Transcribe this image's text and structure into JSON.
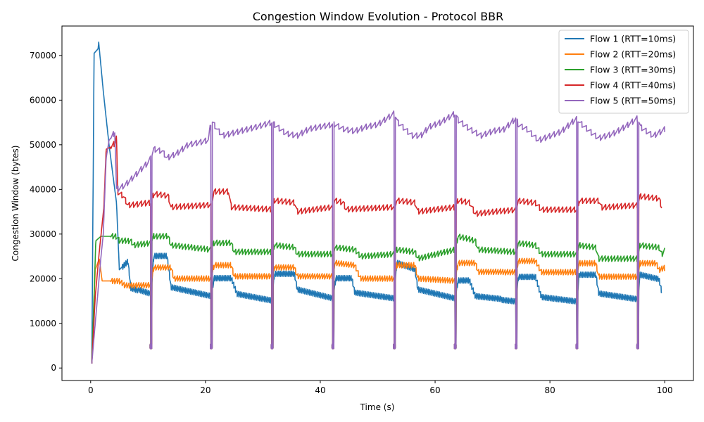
{
  "chart_data": {
    "type": "line",
    "title": "Congestion Window Evolution - Protocol BBR",
    "xlabel": "Time (s)",
    "ylabel": "Congestion Window (bytes)",
    "xlim": [
      -5,
      105
    ],
    "ylim": [
      -2800,
      76600
    ],
    "x_ticks": [
      0,
      20,
      40,
      60,
      80,
      100
    ],
    "y_ticks": [
      0,
      10000,
      20000,
      30000,
      40000,
      50000,
      60000,
      70000
    ],
    "grid": false,
    "legend_position": "top-right",
    "reset_times": [
      10.5,
      21.0,
      31.6,
      42.2,
      52.9,
      63.5,
      74.1,
      84.7,
      95.3
    ],
    "series": [
      {
        "name": "Flow 1 (RTT=10ms)",
        "color": "#1f77b4",
        "values": [
          [
            0.2,
            1000
          ],
          [
            0.6,
            70500
          ],
          [
            1.3,
            71500
          ],
          [
            1.4,
            73000
          ],
          [
            2.2,
            62000
          ],
          [
            3.2,
            50000
          ],
          [
            4.5,
            37000
          ],
          [
            5.0,
            22000
          ],
          [
            6.5,
            24000
          ],
          [
            7.0,
            18000
          ],
          [
            10.5,
            16500
          ],
          [
            11.0,
            25000
          ],
          [
            13.3,
            25000
          ],
          [
            14.0,
            18000
          ],
          [
            21.0,
            16000
          ],
          [
            21.5,
            20000
          ],
          [
            24.5,
            20000
          ],
          [
            25.5,
            16500
          ],
          [
            31.6,
            15000
          ],
          [
            32.0,
            21000
          ],
          [
            35.5,
            21000
          ],
          [
            36.0,
            17500
          ],
          [
            42.2,
            15500
          ],
          [
            42.7,
            20000
          ],
          [
            45.5,
            20000
          ],
          [
            46.0,
            16800
          ],
          [
            52.9,
            15500
          ],
          [
            53.3,
            23500
          ],
          [
            56.5,
            22000
          ],
          [
            57.0,
            17500
          ],
          [
            63.5,
            15500
          ],
          [
            64.0,
            19500
          ],
          [
            66.0,
            19500
          ],
          [
            67.0,
            16000
          ],
          [
            74.1,
            15000
          ],
          [
            74.5,
            20500
          ],
          [
            77.5,
            20500
          ],
          [
            78.5,
            16000
          ],
          [
            84.7,
            15000
          ],
          [
            85.1,
            21000
          ],
          [
            88.0,
            21000
          ],
          [
            88.5,
            16800
          ],
          [
            95.3,
            15500
          ],
          [
            95.7,
            21000
          ],
          [
            99.0,
            20000
          ],
          [
            99.5,
            17000
          ]
        ]
      },
      {
        "name": "Flow 2 (RTT=20ms)",
        "color": "#ff7f0e",
        "values": [
          [
            0.2,
            1000
          ],
          [
            0.8,
            22000
          ],
          [
            1.5,
            24500
          ],
          [
            2.0,
            19500
          ],
          [
            5.0,
            19500
          ],
          [
            6.0,
            18500
          ],
          [
            10.5,
            18500
          ],
          [
            11.0,
            22500
          ],
          [
            14.0,
            22500
          ],
          [
            14.5,
            20000
          ],
          [
            21.0,
            20000
          ],
          [
            21.5,
            23000
          ],
          [
            24.5,
            23000
          ],
          [
            25.0,
            20500
          ],
          [
            31.6,
            20500
          ],
          [
            32.0,
            22500
          ],
          [
            35.5,
            22500
          ],
          [
            36.0,
            20500
          ],
          [
            42.2,
            20500
          ],
          [
            42.5,
            23500
          ],
          [
            46.0,
            23000
          ],
          [
            47.0,
            20000
          ],
          [
            52.9,
            20000
          ],
          [
            53.3,
            23000
          ],
          [
            56.5,
            23000
          ],
          [
            57.0,
            20000
          ],
          [
            63.5,
            19500
          ],
          [
            64.0,
            23500
          ],
          [
            67.0,
            23500
          ],
          [
            67.5,
            21500
          ],
          [
            74.1,
            21500
          ],
          [
            74.5,
            24000
          ],
          [
            77.5,
            24000
          ],
          [
            78.5,
            21500
          ],
          [
            84.7,
            21500
          ],
          [
            85.1,
            23500
          ],
          [
            88.0,
            23500
          ],
          [
            88.5,
            20500
          ],
          [
            95.3,
            20500
          ],
          [
            95.7,
            23500
          ],
          [
            98.5,
            23500
          ],
          [
            99.0,
            22000
          ],
          [
            100.0,
            22500
          ]
        ]
      },
      {
        "name": "Flow 3 (RTT=30ms)",
        "color": "#2ca02c",
        "values": [
          [
            0.2,
            1000
          ],
          [
            0.9,
            28500
          ],
          [
            1.8,
            29500
          ],
          [
            4.5,
            29500
          ],
          [
            5.0,
            28500
          ],
          [
            7.0,
            28500
          ],
          [
            7.5,
            27500
          ],
          [
            10.5,
            28000
          ],
          [
            11.0,
            29500
          ],
          [
            13.5,
            29500
          ],
          [
            14.0,
            27500
          ],
          [
            21.0,
            26500
          ],
          [
            21.5,
            28000
          ],
          [
            24.5,
            28000
          ],
          [
            25.0,
            26000
          ],
          [
            31.6,
            26000
          ],
          [
            32.0,
            27500
          ],
          [
            35.5,
            27000
          ],
          [
            36.0,
            25500
          ],
          [
            42.2,
            25500
          ],
          [
            42.5,
            27000
          ],
          [
            46.0,
            26500
          ],
          [
            47.0,
            25000
          ],
          [
            52.9,
            25500
          ],
          [
            53.3,
            26500
          ],
          [
            56.5,
            26000
          ],
          [
            57.0,
            24500
          ],
          [
            63.5,
            26500
          ],
          [
            64.0,
            29500
          ],
          [
            67.0,
            28500
          ],
          [
            67.5,
            26500
          ],
          [
            74.1,
            26000
          ],
          [
            74.5,
            28000
          ],
          [
            77.5,
            27500
          ],
          [
            78.5,
            25500
          ],
          [
            84.7,
            25500
          ],
          [
            85.1,
            27500
          ],
          [
            88.0,
            27000
          ],
          [
            88.5,
            24500
          ],
          [
            95.3,
            24500
          ],
          [
            95.7,
            27500
          ],
          [
            99.0,
            27000
          ],
          [
            99.5,
            25500
          ],
          [
            100.0,
            26500
          ]
        ]
      },
      {
        "name": "Flow 4 (RTT=40ms)",
        "color": "#d62728",
        "values": [
          [
            0.2,
            1000
          ],
          [
            0.8,
            16000
          ],
          [
            1.5,
            26000
          ],
          [
            2.3,
            36000
          ],
          [
            2.7,
            49000
          ],
          [
            3.5,
            49500
          ],
          [
            4.3,
            50500
          ],
          [
            4.5,
            52000
          ],
          [
            4.7,
            39500
          ],
          [
            5.7,
            38500
          ],
          [
            6.5,
            36500
          ],
          [
            10.5,
            37000
          ],
          [
            11.0,
            39000
          ],
          [
            13.5,
            38500
          ],
          [
            14.0,
            36000
          ],
          [
            21.0,
            36500
          ],
          [
            21.5,
            39500
          ],
          [
            24.0,
            39500
          ],
          [
            24.5,
            36000
          ],
          [
            31.6,
            35500
          ],
          [
            32.0,
            37500
          ],
          [
            35.5,
            37000
          ],
          [
            36.0,
            35000
          ],
          [
            42.2,
            36000
          ],
          [
            42.5,
            37500
          ],
          [
            44.0,
            37000
          ],
          [
            44.5,
            35500
          ],
          [
            52.9,
            36000
          ],
          [
            53.3,
            37500
          ],
          [
            56.5,
            37000
          ],
          [
            57.0,
            35000
          ],
          [
            63.5,
            36000
          ],
          [
            64.0,
            37500
          ],
          [
            66.0,
            37000
          ],
          [
            67.0,
            34500
          ],
          [
            74.1,
            35500
          ],
          [
            74.5,
            37500
          ],
          [
            77.5,
            37000
          ],
          [
            78.5,
            35500
          ],
          [
            84.7,
            35500
          ],
          [
            85.1,
            37500
          ],
          [
            88.5,
            37500
          ],
          [
            89.0,
            36000
          ],
          [
            95.3,
            36500
          ],
          [
            95.7,
            38500
          ],
          [
            99.0,
            38000
          ],
          [
            99.5,
            36000
          ]
        ]
      },
      {
        "name": "Flow 5 (RTT=50ms)",
        "color": "#9467bd",
        "values": [
          [
            0.2,
            1000
          ],
          [
            1.0,
            13000
          ],
          [
            1.8,
            25000
          ],
          [
            2.2,
            30000
          ],
          [
            2.7,
            47000
          ],
          [
            3.2,
            51000
          ],
          [
            3.8,
            52000
          ],
          [
            4.2,
            53000
          ],
          [
            4.5,
            40000
          ],
          [
            6.0,
            41000
          ],
          [
            8.0,
            43500
          ],
          [
            10.0,
            46000
          ],
          [
            10.5,
            47000
          ],
          [
            11.0,
            49000
          ],
          [
            12.5,
            48500
          ],
          [
            13.3,
            47000
          ],
          [
            15.0,
            48000
          ],
          [
            17.0,
            50000
          ],
          [
            19.0,
            50500
          ],
          [
            20.5,
            51000
          ],
          [
            21.0,
            55500
          ],
          [
            22.0,
            53500
          ],
          [
            23.0,
            52000
          ],
          [
            26.0,
            53000
          ],
          [
            29.0,
            54000
          ],
          [
            31.6,
            55000
          ],
          [
            32.0,
            54500
          ],
          [
            33.0,
            53500
          ],
          [
            34.0,
            52500
          ],
          [
            36.0,
            52000
          ],
          [
            38.0,
            53500
          ],
          [
            40.0,
            54000
          ],
          [
            42.2,
            54500
          ],
          [
            42.6,
            54500
          ],
          [
            44.0,
            53500
          ],
          [
            46.0,
            53000
          ],
          [
            48.0,
            54000
          ],
          [
            50.0,
            54500
          ],
          [
            52.9,
            57000
          ],
          [
            53.5,
            55000
          ],
          [
            56.0,
            52000
          ],
          [
            57.5,
            52000
          ],
          [
            59.0,
            54000
          ],
          [
            61.0,
            55000
          ],
          [
            63.5,
            57000
          ],
          [
            64.0,
            55500
          ],
          [
            66.0,
            53500
          ],
          [
            68.0,
            52000
          ],
          [
            70.0,
            53000
          ],
          [
            72.0,
            53500
          ],
          [
            74.1,
            56000
          ],
          [
            74.5,
            54500
          ],
          [
            76.0,
            53500
          ],
          [
            78.0,
            51000
          ],
          [
            80.0,
            52000
          ],
          [
            82.0,
            53000
          ],
          [
            84.7,
            56000
          ],
          [
            85.2,
            55000
          ],
          [
            87.0,
            53000
          ],
          [
            88.5,
            51500
          ],
          [
            91.0,
            52500
          ],
          [
            93.0,
            54000
          ],
          [
            95.3,
            56000
          ],
          [
            95.8,
            54000
          ],
          [
            98.0,
            52000
          ],
          [
            100.0,
            53500
          ]
        ]
      }
    ]
  }
}
